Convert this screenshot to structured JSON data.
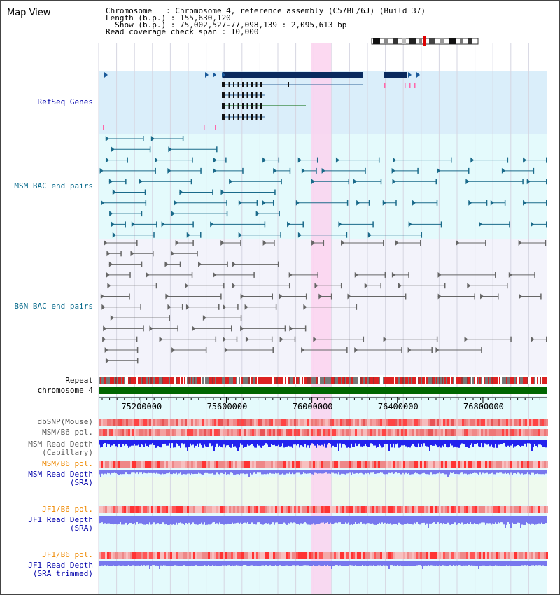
{
  "header": {
    "title": "Map View",
    "info_lines": [
      "Chromosome   : Chromosome 4, reference assembly (C57BL/6J) (Build 37)",
      "Length (b.p.) : 155,630,120",
      "  Show (b.p.) : 75,002,527-77,098,139 : 2,095,613 bp",
      "Read coverage check span : 10,000"
    ]
  },
  "tracks": {
    "refseq": "RefSeq Genes",
    "msm_bac": "MSM BAC end pairs",
    "b6n_bac": "B6N BAC end pairs",
    "repeat": "Repeat",
    "chromosome": "chromosome 4",
    "dbsnp": "dbSNP(Mouse)",
    "msm_b6_pol_1": "MSM/B6 pol.",
    "msm_read_depth_cap_1": "MSM Read Depth",
    "msm_read_depth_cap_2": "(Capillary)",
    "msm_b6_pol_2": "MSM/B6 pol.",
    "msm_read_depth_sra_1": "MSM Read Depth",
    "msm_read_depth_sra_2": "(SRA)",
    "jf1_b6_pol_1": "JF1/B6 pol.",
    "jf1_read_depth_1": "JF1 Read Depth",
    "jf1_read_depth_2": "(SRA)",
    "jf1_b6_pol_2": "JF1/B6 pol.",
    "jf1_read_depth_trim_1": "JF1 Read Depth",
    "jf1_read_depth_trim_2": "(SRA trimmed)"
  },
  "axis": {
    "ticks": [
      {
        "label": "75200000",
        "value": 75200000
      },
      {
        "label": "75600000",
        "value": 75600000
      },
      {
        "label": "76000000",
        "value": 76000000
      },
      {
        "label": "76400000",
        "value": 76400000
      },
      {
        "label": "76800000",
        "value": 76800000
      }
    ],
    "range_start": 75002527,
    "range_end": 77098139,
    "highlight_start": 75995000,
    "highlight_end": 76090000
  },
  "colors": {
    "refseq_bg": "#daeefa",
    "msm_bg": "#e4fafc",
    "gray_bg": "#f3f3fb",
    "gene_dark": "#0a2a5e",
    "msm_feature": "#1a6a8a",
    "b6n_feature": "#666666",
    "chromosome_bar": "#006600",
    "highlight": "#fbd2ee",
    "label_blue": "#0000aa",
    "label_teal": "#006688",
    "label_orange": "#ee8800",
    "depth_blue": "#2222ee",
    "depth_light_blue": "#7777ee"
  },
  "icons": [
    "chromosome-ideogram-icon",
    "centromere-marker-icon"
  ]
}
